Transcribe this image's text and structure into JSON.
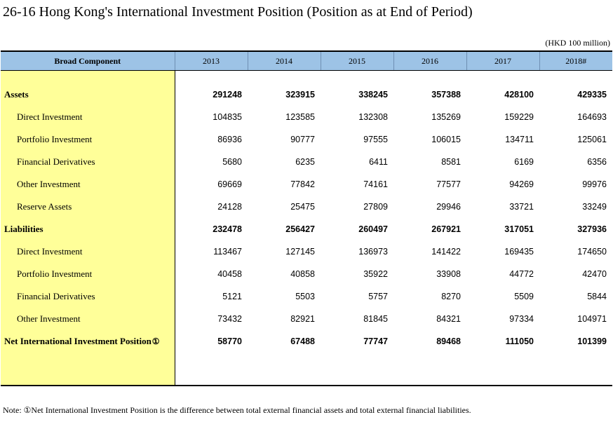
{
  "title": "26-16  Hong Kong's International Investment Position (Position as at End of Period)",
  "unit": "(HKD 100 million)",
  "table": {
    "header_label": "Broad Component",
    "years": [
      "2013",
      "2014",
      "2015",
      "2016",
      "2017",
      "2018#"
    ],
    "rows": [
      {
        "label": "Assets",
        "values": [
          "291248",
          "323915",
          "338245",
          "357388",
          "428100",
          "429335"
        ]
      },
      {
        "label": "Direct Investment",
        "values": [
          "104835",
          "123585",
          "132308",
          "135269",
          "159229",
          "164693"
        ]
      },
      {
        "label": "Portfolio Investment",
        "values": [
          "86936",
          "90777",
          "97555",
          "106015",
          "134711",
          "125061"
        ]
      },
      {
        "label": "Financial Derivatives",
        "values": [
          "5680",
          "6235",
          "6411",
          "8581",
          "6169",
          "6356"
        ]
      },
      {
        "label": "Other Investment",
        "values": [
          "69669",
          "77842",
          "74161",
          "77577",
          "94269",
          "99976"
        ]
      },
      {
        "label": "Reserve Assets",
        "values": [
          "24128",
          "25475",
          "27809",
          "29946",
          "33721",
          "33249"
        ]
      },
      {
        "label": "Liabilities",
        "values": [
          "232478",
          "256427",
          "260497",
          "267921",
          "317051",
          "327936"
        ]
      },
      {
        "label": "Direct Investment",
        "values": [
          "113467",
          "127145",
          "136973",
          "141422",
          "169435",
          "174650"
        ]
      },
      {
        "label": "Portfolio Investment",
        "values": [
          "40458",
          "40858",
          "35922",
          "33908",
          "44772",
          "42470"
        ]
      },
      {
        "label": "Financial Derivatives",
        "values": [
          "5121",
          "5503",
          "5757",
          "8270",
          "5509",
          "5844"
        ]
      },
      {
        "label": "Other Investment",
        "values": [
          "73432",
          "82921",
          "81845",
          "84321",
          "97334",
          "104971"
        ]
      },
      {
        "label": "Net International Investment Position",
        "marker": "①",
        "values": [
          "58770",
          "67488",
          "77747",
          "89468",
          "111050",
          "101399"
        ]
      }
    ]
  },
  "note": "Note: ①Net International Investment Position is the difference between total external financial assets and total external financial liabilities.",
  "colors": {
    "header_bg": "#9dc3e6",
    "label_bg": "#ffff99"
  }
}
